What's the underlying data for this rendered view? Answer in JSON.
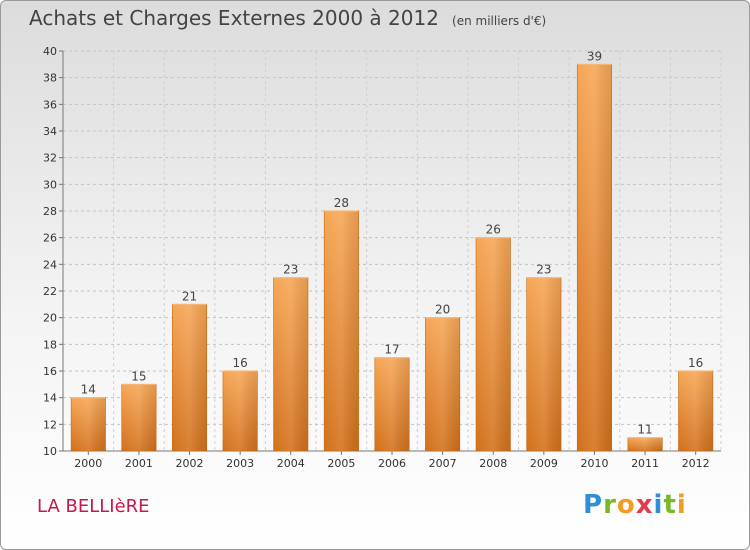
{
  "title": "Achats et Charges Externes 2000 à 2012",
  "unit": "(en milliers d'€)",
  "commune": "LA BELLIèRE",
  "logo": {
    "text": "Proxiti",
    "letters": [
      {
        "ch": "P",
        "color": "#2f8fd6"
      },
      {
        "ch": "r",
        "color": "#7ab829"
      },
      {
        "ch": "o",
        "color": "#f39c1f"
      },
      {
        "ch": "x",
        "color": "#e23b4b"
      },
      {
        "ch": "i",
        "color": "#2f8fd6"
      },
      {
        "ch": "t",
        "color": "#7ab829"
      },
      {
        "ch": "i",
        "color": "#f39c1f"
      }
    ]
  },
  "chart_data": {
    "type": "bar",
    "title": "Achats et Charges Externes 2000 à 2012",
    "categories": [
      "2000",
      "2001",
      "2002",
      "2003",
      "2004",
      "2005",
      "2006",
      "2007",
      "2008",
      "2009",
      "2010",
      "2011",
      "2012"
    ],
    "values": [
      14,
      15,
      21,
      16,
      23,
      28,
      17,
      20,
      26,
      23,
      39,
      11,
      16
    ],
    "ylim": [
      10,
      40
    ],
    "yticks": [
      10,
      12,
      14,
      16,
      18,
      20,
      22,
      24,
      26,
      28,
      30,
      32,
      34,
      36,
      38,
      40
    ],
    "grid": true,
    "bar_color": "#f0922f"
  }
}
